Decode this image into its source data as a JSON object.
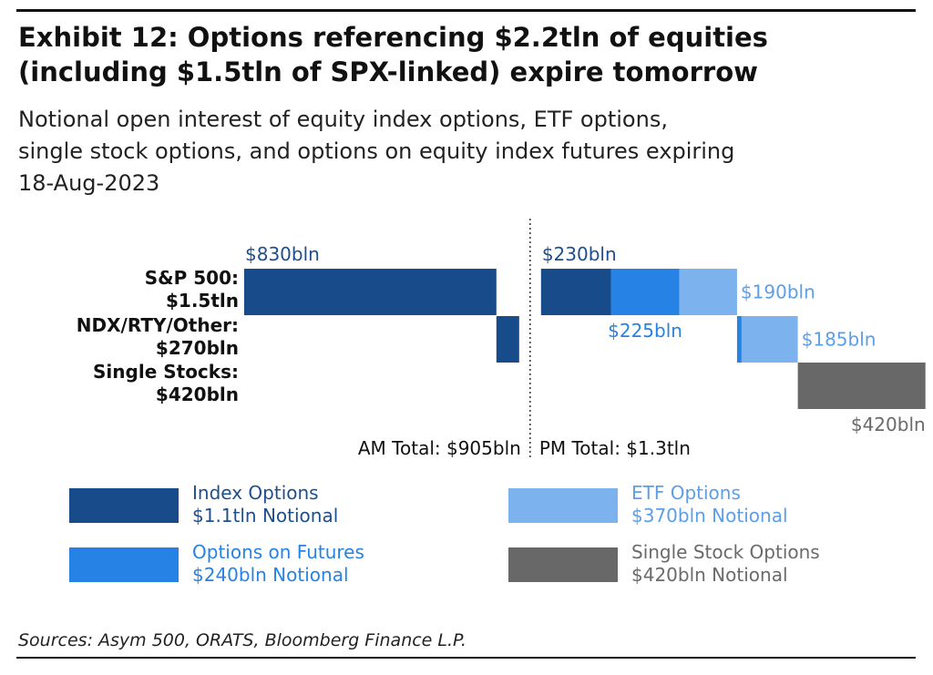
{
  "header": {
    "title_line1": "Exhibit 12: Options referencing $2.2tln of equities",
    "title_line2": "(including $1.5tln of SPX-linked) expire tomorrow",
    "subtitle_line1": "Notional open interest of equity index options, ETF options,",
    "subtitle_line2": "single stock options, and options on equity index futures expiring",
    "subtitle_line3": "18-Aug-2023"
  },
  "source": "Sources: Asym 500, ORATS, Bloomberg Finance L.P.",
  "chart_data": {
    "type": "bar",
    "orientation": "horizontal-waterfall",
    "units": "$bln notional",
    "rows": [
      {
        "label_line1": "S&P 500:",
        "label_line2": "$1.5tln"
      },
      {
        "label_line1": "NDX/RTY/Other:",
        "label_line2": "$270bln"
      },
      {
        "label_line1": "Single Stocks:",
        "label_line2": "$420bln"
      }
    ],
    "segments": [
      {
        "row": 0,
        "session": "AM",
        "category": "Index Options",
        "value": 830,
        "label": "$830bln",
        "label_pos": "above",
        "label_align": "start"
      },
      {
        "row": 1,
        "session": "AM",
        "category": "Index Options",
        "value": 75,
        "label": "",
        "label_pos": "none"
      },
      {
        "row": 0,
        "session": "PM",
        "category": "Index Options",
        "value": 230,
        "label": "$230bln",
        "label_pos": "above",
        "label_align": "start"
      },
      {
        "row": 0,
        "session": "PM",
        "category": "Options on Futures",
        "value": 225,
        "label": "$225bln",
        "label_pos": "below",
        "label_align": "middle"
      },
      {
        "row": 0,
        "session": "PM",
        "category": "ETF Options",
        "value": 190,
        "label": "$190bln",
        "label_pos": "right",
        "label_align": "start"
      },
      {
        "row": 1,
        "session": "PM",
        "category": "Options on Futures",
        "value": 15,
        "label": "",
        "label_pos": "none"
      },
      {
        "row": 1,
        "session": "PM",
        "category": "ETF Options",
        "value": 185,
        "label": "$185bln",
        "label_pos": "right",
        "label_align": "start"
      },
      {
        "row": 2,
        "session": "PM",
        "category": "Single Stock Options",
        "value": 420,
        "label": "$420bln",
        "label_pos": "below",
        "label_align": "end"
      }
    ],
    "session_totals": {
      "am": "AM Total: $905bln",
      "pm": "PM Total: $1.3tln"
    },
    "colors": {
      "Index Options": "#184b8a",
      "Options on Futures": "#2682e4",
      "ETF Options": "#7cb3ee",
      "Single Stock Options": "#686868"
    },
    "label_colors": {
      "Index Options": "#1e4f8c",
      "Options on Futures": "#2682e4",
      "ETF Options": "#5d9ee8",
      "Single Stock Options": "#6a6a6a"
    },
    "divider": "dotted",
    "legend": [
      {
        "category": "Index Options",
        "line1": "Index Options",
        "line2": "$1.1tln Notional"
      },
      {
        "category": "ETF Options",
        "line1": "ETF Options",
        "line2": "$370bln Notional"
      },
      {
        "category": "Options on Futures",
        "line1": "Options on Futures",
        "line2": "$240bln Notional"
      },
      {
        "category": "Single Stock Options",
        "line1": "Single Stock Options",
        "line2": "$420bln Notional"
      }
    ],
    "legend_placement": "bottom",
    "grid": false
  }
}
